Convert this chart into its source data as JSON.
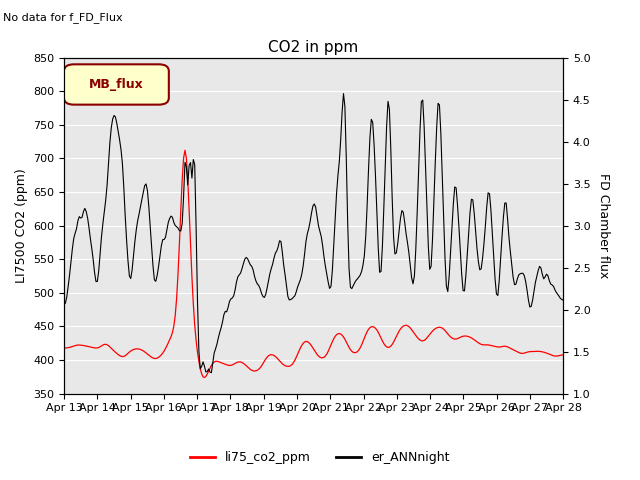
{
  "title": "CO2 in ppm",
  "ylabel_left": "LI7500 CO2 (ppm)",
  "ylabel_right": "FD Chamber flux",
  "ylim_left": [
    350,
    850
  ],
  "ylim_right": [
    1.0,
    5.0
  ],
  "xlabel_ticks": [
    "Apr 13",
    "Apr 14",
    "Apr 15",
    "Apr 16",
    "Apr 17",
    "Apr 18",
    "Apr 19",
    "Apr 20",
    "Apr 21",
    "Apr 22",
    "Apr 23",
    "Apr 24",
    "Apr 25",
    "Apr 26",
    "Apr 27",
    "Apr 28"
  ],
  "no_data_text": "No data for f_FD_Flux",
  "legend_box_text": "MB_flux",
  "legend_entries": [
    "li75_co2_ppm",
    "er_ANNnight"
  ],
  "legend_line_colors": [
    "red",
    "black"
  ],
  "background_color": "white",
  "plot_bg_color": "#e8e8e8",
  "grid_color": "white",
  "title_fontsize": 11,
  "axis_label_fontsize": 9,
  "tick_fontsize": 8,
  "no_data_fontsize": 8,
  "legend_box_facecolor": "#ffffcc",
  "legend_box_edge_color": "#8b0000",
  "legend_box_text_color": "#8b0000",
  "yticks_left": [
    350,
    400,
    450,
    500,
    550,
    600,
    650,
    700,
    750,
    800,
    850
  ],
  "yticks_right": [
    1.0,
    1.5,
    2.0,
    2.5,
    3.0,
    3.5,
    4.0,
    4.5,
    5.0
  ]
}
